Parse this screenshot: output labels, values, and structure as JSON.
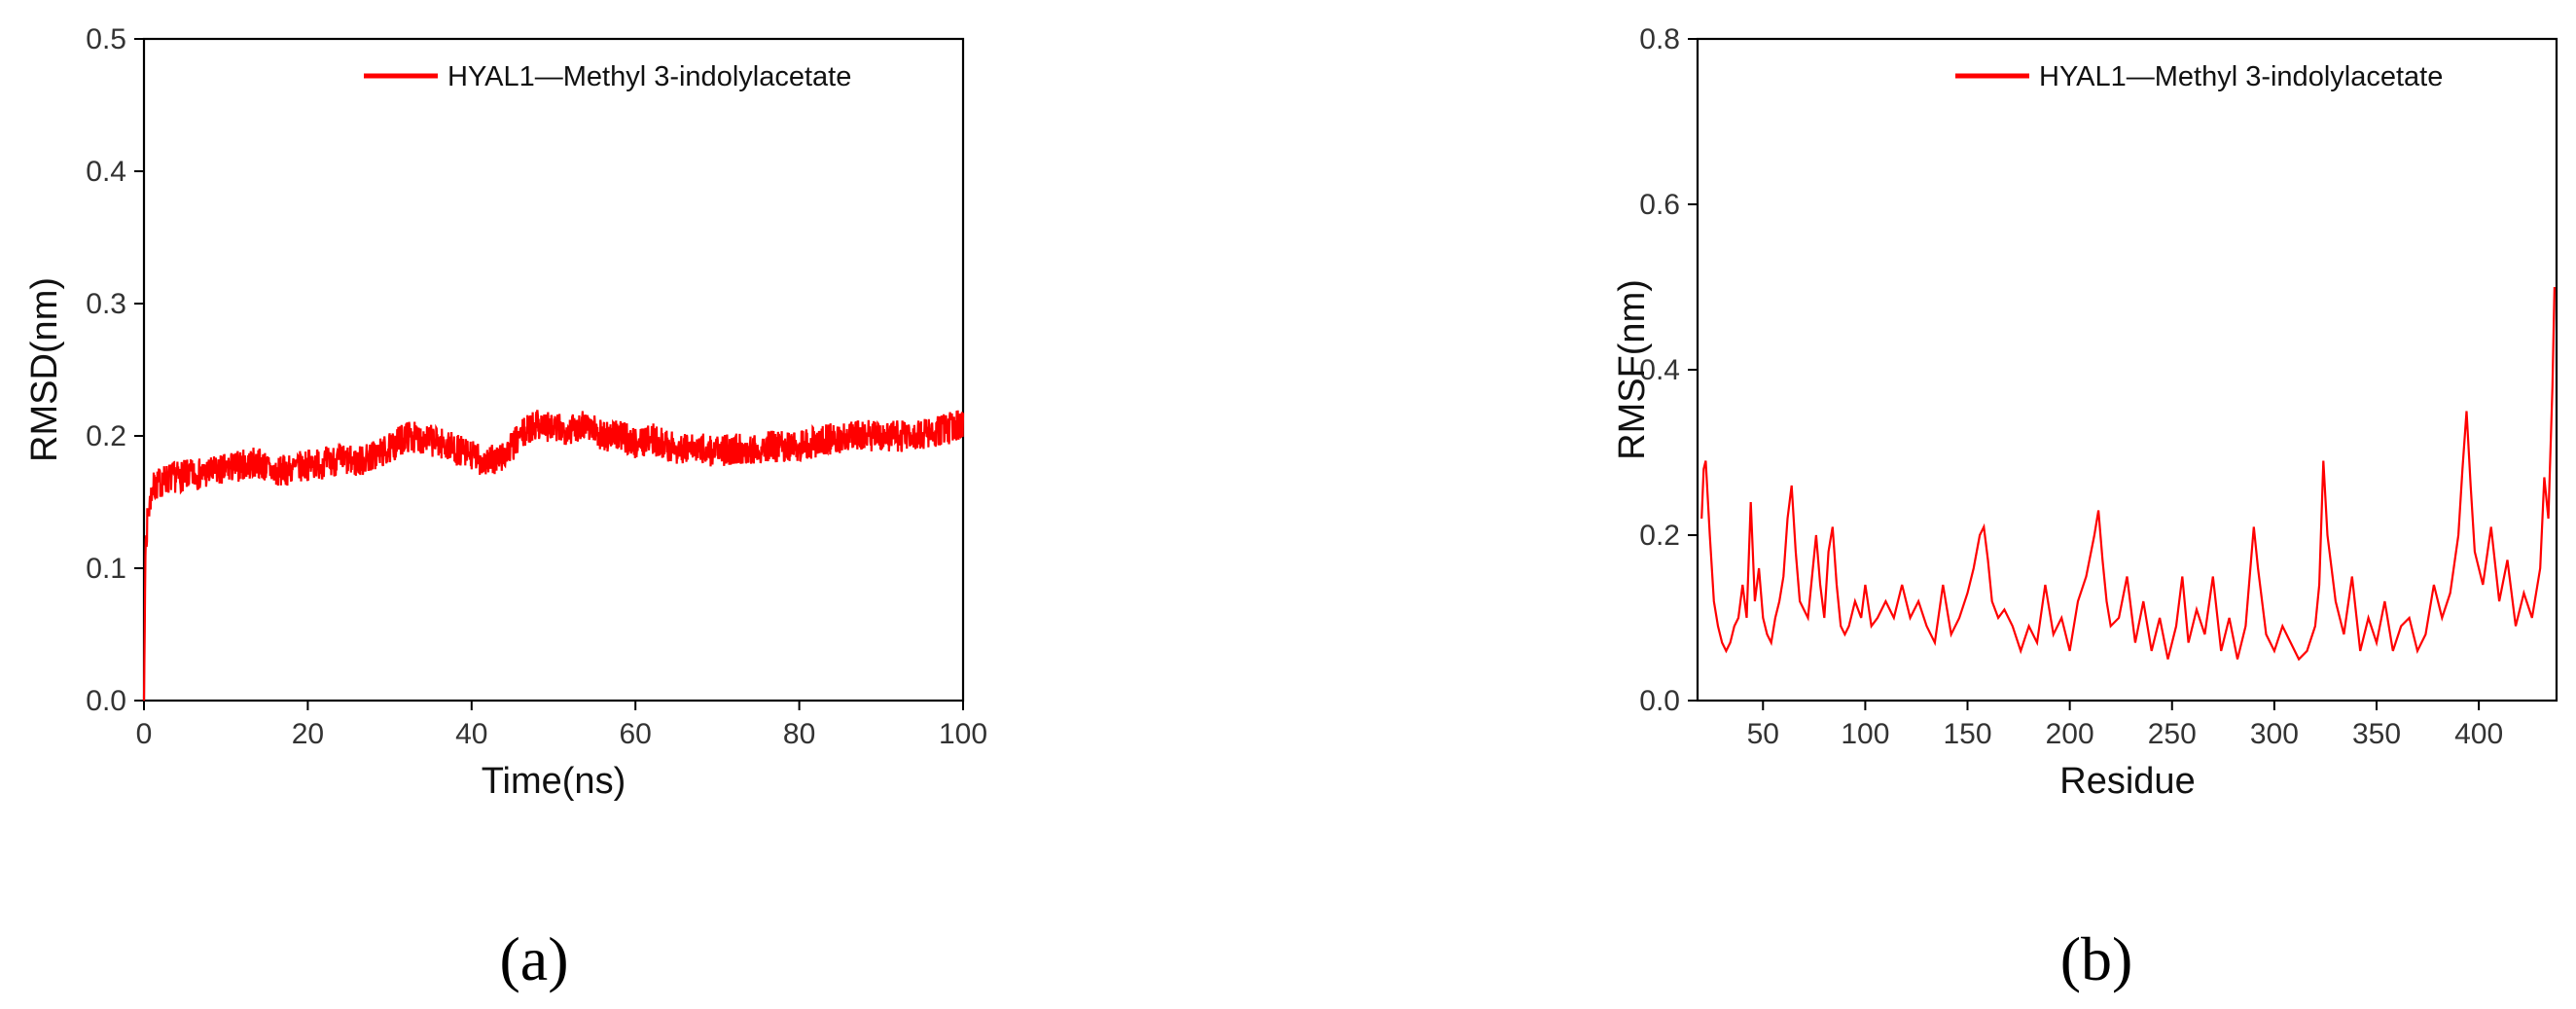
{
  "chart_data": [
    {
      "type": "line",
      "panel_label": "(a)",
      "xlabel": "Time(ns)",
      "ylabel": "RMSD(nm)",
      "xlim": [
        0,
        100
      ],
      "ylim": [
        0,
        0.5
      ],
      "xticks": [
        0,
        20,
        40,
        60,
        80,
        100
      ],
      "yticks": [
        0.0,
        0.1,
        0.2,
        0.3,
        0.4,
        0.5
      ],
      "xtick_labels": [
        "0",
        "20",
        "40",
        "60",
        "80",
        "100"
      ],
      "ytick_labels": [
        "0.0",
        "0.1",
        "0.2",
        "0.3",
        "0.4",
        "0.5"
      ],
      "legend_position": "top-right",
      "series": [
        {
          "name": "HYAL1—Methyl 3-indolylacetate",
          "color": "#ff0000",
          "x": [
            0,
            0.2,
            0.5,
            1,
            2,
            3,
            5,
            8,
            10,
            12,
            14,
            16,
            18,
            20,
            22,
            24,
            26,
            28,
            30,
            32,
            34,
            36,
            38,
            40,
            42,
            44,
            46,
            48,
            50,
            52,
            54,
            56,
            58,
            60,
            62,
            64,
            66,
            68,
            70,
            72,
            74,
            76,
            78,
            80,
            82,
            84,
            86,
            88,
            90,
            92,
            94,
            96,
            98,
            100
          ],
          "y": [
            0.0,
            0.12,
            0.14,
            0.16,
            0.165,
            0.168,
            0.17,
            0.172,
            0.175,
            0.178,
            0.18,
            0.172,
            0.175,
            0.178,
            0.18,
            0.182,
            0.18,
            0.185,
            0.19,
            0.2,
            0.198,
            0.195,
            0.19,
            0.185,
            0.18,
            0.185,
            0.2,
            0.21,
            0.205,
            0.205,
            0.21,
            0.2,
            0.2,
            0.195,
            0.198,
            0.192,
            0.19,
            0.19,
            0.188,
            0.19,
            0.19,
            0.192,
            0.192,
            0.193,
            0.195,
            0.198,
            0.2,
            0.2,
            0.2,
            0.2,
            0.2,
            0.202,
            0.205,
            0.21
          ],
          "noise_amplitude": 0.012
        }
      ]
    },
    {
      "type": "line",
      "panel_label": "(b)",
      "xlabel": "Residue",
      "ylabel": "RMSF(nm)",
      "xlim": [
        18,
        438
      ],
      "ylim": [
        0,
        0.8
      ],
      "xticks": [
        50,
        100,
        150,
        200,
        250,
        300,
        350,
        400
      ],
      "yticks": [
        0.0,
        0.2,
        0.4,
        0.6,
        0.8
      ],
      "xtick_labels": [
        "50",
        "100",
        "150",
        "200",
        "250",
        "300",
        "350",
        "400"
      ],
      "ytick_labels": [
        "0.0",
        "0.2",
        "0.4",
        "0.6",
        "0.8"
      ],
      "legend_position": "top-right",
      "series": [
        {
          "name": "HYAL1—Methyl 3-indolylacetate",
          "color": "#ff0000",
          "x": [
            20,
            21,
            22,
            24,
            26,
            28,
            30,
            32,
            34,
            36,
            38,
            40,
            42,
            44,
            46,
            48,
            50,
            52,
            54,
            56,
            58,
            60,
            62,
            64,
            66,
            68,
            70,
            72,
            74,
            76,
            78,
            80,
            82,
            84,
            86,
            88,
            90,
            92,
            95,
            98,
            100,
            103,
            106,
            110,
            114,
            118,
            122,
            126,
            130,
            134,
            138,
            142,
            146,
            150,
            153,
            156,
            158,
            160,
            162,
            165,
            168,
            172,
            176,
            180,
            184,
            188,
            192,
            196,
            200,
            204,
            208,
            212,
            214,
            216,
            218,
            220,
            224,
            228,
            232,
            236,
            240,
            244,
            248,
            252,
            255,
            258,
            262,
            266,
            270,
            274,
            278,
            282,
            286,
            290,
            292,
            294,
            296,
            300,
            304,
            308,
            312,
            316,
            320,
            322,
            324,
            326,
            328,
            330,
            334,
            338,
            342,
            346,
            350,
            354,
            358,
            362,
            366,
            370,
            374,
            378,
            382,
            386,
            390,
            392,
            394,
            396,
            398,
            402,
            406,
            410,
            414,
            418,
            422,
            426,
            430,
            432,
            434,
            436,
            437
          ],
          "y": [
            0.22,
            0.28,
            0.29,
            0.2,
            0.12,
            0.09,
            0.07,
            0.06,
            0.07,
            0.09,
            0.1,
            0.14,
            0.1,
            0.24,
            0.12,
            0.16,
            0.1,
            0.08,
            0.07,
            0.1,
            0.12,
            0.15,
            0.22,
            0.26,
            0.18,
            0.12,
            0.11,
            0.1,
            0.15,
            0.2,
            0.14,
            0.1,
            0.18,
            0.21,
            0.14,
            0.09,
            0.08,
            0.09,
            0.12,
            0.1,
            0.14,
            0.09,
            0.1,
            0.12,
            0.1,
            0.14,
            0.1,
            0.12,
            0.09,
            0.07,
            0.14,
            0.08,
            0.1,
            0.13,
            0.16,
            0.2,
            0.21,
            0.17,
            0.12,
            0.1,
            0.11,
            0.09,
            0.06,
            0.09,
            0.07,
            0.14,
            0.08,
            0.1,
            0.06,
            0.12,
            0.15,
            0.2,
            0.23,
            0.17,
            0.12,
            0.09,
            0.1,
            0.15,
            0.07,
            0.12,
            0.06,
            0.1,
            0.05,
            0.09,
            0.15,
            0.07,
            0.11,
            0.08,
            0.15,
            0.06,
            0.1,
            0.05,
            0.09,
            0.21,
            0.16,
            0.12,
            0.08,
            0.06,
            0.09,
            0.07,
            0.05,
            0.06,
            0.09,
            0.14,
            0.29,
            0.2,
            0.16,
            0.12,
            0.08,
            0.15,
            0.06,
            0.1,
            0.07,
            0.12,
            0.06,
            0.09,
            0.1,
            0.06,
            0.08,
            0.14,
            0.1,
            0.13,
            0.2,
            0.28,
            0.35,
            0.26,
            0.18,
            0.14,
            0.21,
            0.12,
            0.17,
            0.09,
            0.13,
            0.1,
            0.16,
            0.27,
            0.22,
            0.38,
            0.5
          ]
        }
      ]
    }
  ]
}
